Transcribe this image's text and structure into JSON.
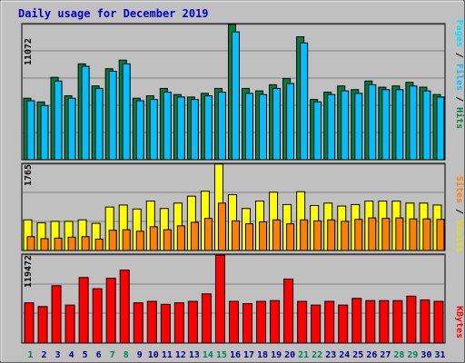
{
  "chart_data": [
    {
      "type": "bar",
      "title": "Daily usage for December 2019",
      "categories": [
        "1",
        "2",
        "3",
        "4",
        "5",
        "6",
        "7",
        "8",
        "9",
        "10",
        "11",
        "12",
        "13",
        "14",
        "15",
        "16",
        "17",
        "18",
        "19",
        "20",
        "21",
        "22",
        "23",
        "24",
        "25",
        "26",
        "27",
        "28",
        "29",
        "30",
        "31"
      ],
      "weekend_days": [
        "1",
        "7",
        "8",
        "14",
        "15",
        "21",
        "22",
        "28",
        "29"
      ],
      "y_tick_label": "11072",
      "ylim": [
        0,
        11072
      ],
      "grid": true,
      "series": [
        {
          "name": "Hits",
          "color": "#008040",
          "values": [
            5000,
            4700,
            6700,
            5200,
            7800,
            6000,
            7400,
            8100,
            5000,
            5200,
            5800,
            5300,
            5100,
            5400,
            5800,
            11000,
            5800,
            5600,
            6100,
            6600,
            10000,
            4900,
            5500,
            6000,
            5700,
            6400,
            5900,
            6000,
            6300,
            5900,
            5300
          ]
        },
        {
          "name": "Files",
          "color": "#00c0ff",
          "values": [
            4800,
            4400,
            6400,
            5000,
            7600,
            5800,
            7200,
            7800,
            4800,
            4900,
            5500,
            5100,
            4900,
            5200,
            5500,
            10400,
            5400,
            5300,
            5800,
            6200,
            9500,
            4700,
            5300,
            5600,
            5400,
            6100,
            5700,
            5700,
            6000,
            5600,
            5100
          ]
        },
        {
          "name": "Pages",
          "color": "#00e0ff",
          "values": [
            0,
            0,
            0,
            0,
            0,
            0,
            0,
            0,
            0,
            0,
            0,
            0,
            0,
            0,
            0,
            0,
            0,
            0,
            0,
            0,
            0,
            0,
            0,
            0,
            0,
            0,
            0,
            0,
            0,
            0,
            0
          ]
        }
      ]
    },
    {
      "type": "bar",
      "categories": [
        "1",
        "2",
        "3",
        "4",
        "5",
        "6",
        "7",
        "8",
        "9",
        "10",
        "11",
        "12",
        "13",
        "14",
        "15",
        "16",
        "17",
        "18",
        "19",
        "20",
        "21",
        "22",
        "23",
        "24",
        "25",
        "26",
        "27",
        "28",
        "29",
        "30",
        "31"
      ],
      "y_tick_label": "1765",
      "ylim": [
        0,
        1765
      ],
      "grid": true,
      "series": [
        {
          "name": "Visits",
          "color": "#ffff00",
          "values": [
            620,
            560,
            590,
            590,
            620,
            550,
            880,
            920,
            840,
            1000,
            850,
            960,
            1100,
            1200,
            1750,
            1130,
            850,
            1000,
            1180,
            930,
            1190,
            910,
            960,
            900,
            930,
            1000,
            1000,
            1000,
            960,
            960,
            920
          ]
        },
        {
          "name": "Sites",
          "color": "#ff8000",
          "values": [
            280,
            240,
            250,
            270,
            280,
            230,
            410,
            420,
            390,
            480,
            420,
            500,
            570,
            650,
            960,
            600,
            540,
            580,
            620,
            540,
            620,
            600,
            620,
            590,
            630,
            660,
            650,
            660,
            640,
            640,
            630
          ]
        }
      ]
    },
    {
      "type": "bar",
      "categories": [
        "1",
        "2",
        "3",
        "4",
        "5",
        "6",
        "7",
        "8",
        "9",
        "10",
        "11",
        "12",
        "13",
        "14",
        "15",
        "16",
        "17",
        "18",
        "19",
        "20",
        "21",
        "22",
        "23",
        "24",
        "25",
        "26",
        "27",
        "28",
        "29",
        "30",
        "31"
      ],
      "y_tick_label": "119472",
      "ylim": [
        0,
        119472
      ],
      "grid": true,
      "series": [
        {
          "name": "KBytes",
          "color": "#ff0000",
          "values": [
            54000,
            49000,
            77000,
            51000,
            88000,
            73000,
            87000,
            98000,
            54000,
            56000,
            52000,
            54000,
            56000,
            66000,
            118000,
            56000,
            53000,
            56000,
            57000,
            86000,
            56000,
            51000,
            56000,
            51000,
            60000,
            57000,
            57000,
            57000,
            63000,
            58000,
            56000
          ]
        }
      ]
    }
  ]
}
